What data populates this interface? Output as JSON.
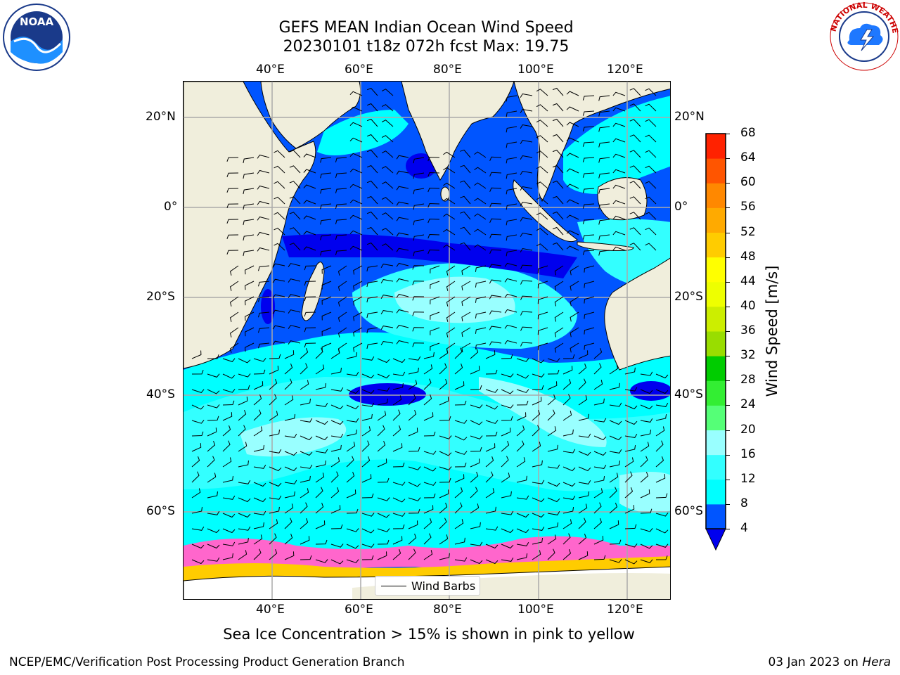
{
  "title": {
    "line1": "GEFS MEAN Indian Ocean Wind Speed",
    "line2": "20230101 t18z 072h fcst   Max: 19.75"
  },
  "map": {
    "lon_ticks_top": [
      "40°E",
      "60°E",
      "80°E",
      "100°E",
      "120°E"
    ],
    "lon_ticks_bottom": [
      "40°E",
      "60°E",
      "80°E",
      "100°E",
      "120°E"
    ],
    "lat_ticks_left": [
      "20°N",
      "0°",
      "20°S",
      "40°S",
      "60°S"
    ],
    "lat_ticks_right": [
      "20°N",
      "0°",
      "20°S",
      "40°S",
      "60°S"
    ],
    "legend_label": "Wind Barbs"
  },
  "colorbar": {
    "title": "Wind Speed [m/s]",
    "ticks": [
      "4",
      "8",
      "12",
      "16",
      "20",
      "24",
      "28",
      "32",
      "36",
      "40",
      "44",
      "48",
      "52",
      "56",
      "60",
      "64",
      "68"
    ],
    "colors": [
      "#0055ff",
      "#00ffff",
      "#33ffff",
      "#99ffff",
      "#55ff77",
      "#33ee33",
      "#00cc00",
      "#99dd00",
      "#ccee00",
      "#eeff00",
      "#ffff00",
      "#ffcc00",
      "#ffaa00",
      "#ff8800",
      "#ff5500",
      "#ff2200"
    ],
    "under_color": "#0000ee"
  },
  "footer": {
    "note": "Sea Ice Concentration > 15% is shown in pink to yellow",
    "credit_left": "NCEP/EMC/Verification Post Processing Product Generation Branch",
    "credit_right_date": "03 Jan 2023 on",
    "credit_right_machine": "Hera"
  },
  "logos": {
    "left": "noaa-logo",
    "right": "national-weather-service-logo"
  },
  "colors": {
    "land": "#f0eedc",
    "ocean_low": "#0055ff",
    "ocean_mid": "#00ffff",
    "ocean_high": "#99ffff",
    "calm": "#0000ee",
    "ice": "#ff66cc"
  }
}
